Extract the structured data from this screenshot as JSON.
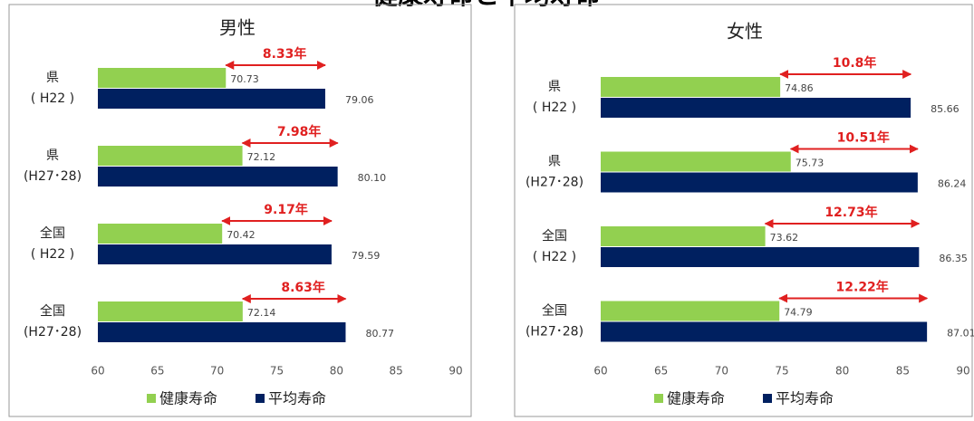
{
  "title": "健康寿命と平均寿命",
  "chart_data": [
    {
      "type": "bar",
      "orientation": "horizontal",
      "title": "男性",
      "categories": [
        [
          "県",
          "( H22 )"
        ],
        [
          "県",
          "(H27･28)"
        ],
        [
          "全国",
          "( H22 )"
        ],
        [
          "全国",
          "(H27･28)"
        ]
      ],
      "series": [
        {
          "name": "健康寿命",
          "color": "#92d050",
          "values": [
            70.73,
            72.12,
            70.42,
            72.14
          ],
          "value_labels": [
            "70.73",
            "72.12",
            "70.42",
            "72.14"
          ]
        },
        {
          "name": "平均寿命",
          "color": "#002060",
          "values": [
            79.06,
            80.1,
            79.59,
            80.77
          ],
          "value_labels": [
            "79.06",
            "80.10",
            "79.59",
            "80.77"
          ]
        }
      ],
      "annotations": [
        "8.33年",
        "7.98年",
        "9.17年",
        "8.63年"
      ],
      "xlim": [
        60,
        90
      ],
      "xticks": [
        60,
        65,
        70,
        75,
        80,
        85,
        90
      ],
      "grid": false,
      "legend": "bottom"
    },
    {
      "type": "bar",
      "orientation": "horizontal",
      "title": "女性",
      "categories": [
        [
          "県",
          "( H22 )"
        ],
        [
          "県",
          "(H27･28)"
        ],
        [
          "全国",
          "( H22 )"
        ],
        [
          "全国",
          "(H27･28)"
        ]
      ],
      "series": [
        {
          "name": "健康寿命",
          "color": "#92d050",
          "values": [
            74.86,
            75.73,
            73.62,
            74.79
          ],
          "value_labels": [
            "74.86",
            "75.73",
            "73.62",
            "74.79"
          ]
        },
        {
          "name": "平均寿命",
          "color": "#002060",
          "values": [
            85.66,
            86.24,
            86.35,
            87.01
          ],
          "value_labels": [
            "85.66",
            "86.24",
            "86.35",
            "87.01"
          ]
        }
      ],
      "annotations": [
        "10.8年",
        "10.51年",
        "12.73年",
        "12.22年"
      ],
      "xlim": [
        60,
        90
      ],
      "xticks": [
        60,
        65,
        70,
        75,
        80,
        85,
        90
      ],
      "grid": false,
      "legend": "bottom"
    }
  ]
}
